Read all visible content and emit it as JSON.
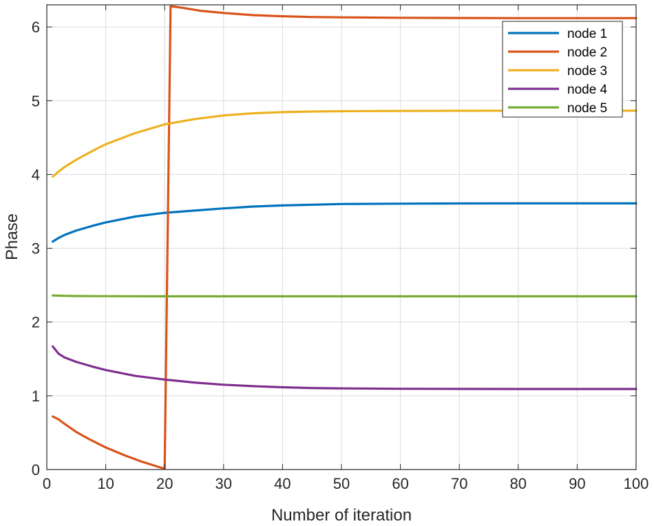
{
  "chart_data": {
    "type": "line",
    "title": "",
    "xlabel": "Number of iteration",
    "ylabel": "Phase",
    "xlim": [
      0,
      100
    ],
    "ylim": [
      0,
      6.3
    ],
    "x_ticks": [
      "0",
      "10",
      "20",
      "30",
      "40",
      "50",
      "60",
      "70",
      "80",
      "90",
      "100"
    ],
    "y_ticks": [
      "0",
      "1",
      "2",
      "3",
      "4",
      "5",
      "6"
    ],
    "grid": true,
    "legend_position": "top-right",
    "series": [
      {
        "name": "node 1",
        "color": "#0072BD",
        "points": [
          [
            1,
            3.09
          ],
          [
            2,
            3.14
          ],
          [
            3,
            3.18
          ],
          [
            5,
            3.24
          ],
          [
            8,
            3.31
          ],
          [
            10,
            3.35
          ],
          [
            15,
            3.43
          ],
          [
            20,
            3.48
          ],
          [
            25,
            3.51
          ],
          [
            30,
            3.54
          ],
          [
            35,
            3.565
          ],
          [
            40,
            3.58
          ],
          [
            45,
            3.59
          ],
          [
            50,
            3.6
          ],
          [
            60,
            3.605
          ],
          [
            70,
            3.607
          ],
          [
            80,
            3.608
          ],
          [
            90,
            3.608
          ],
          [
            100,
            3.608
          ]
        ]
      },
      {
        "name": "node 2",
        "color": "#D95319",
        "points": [
          [
            1,
            0.72
          ],
          [
            2,
            0.68
          ],
          [
            3,
            0.62
          ],
          [
            5,
            0.51
          ],
          [
            7,
            0.42
          ],
          [
            10,
            0.3
          ],
          [
            13,
            0.2
          ],
          [
            16,
            0.11
          ],
          [
            18,
            0.06
          ],
          [
            20,
            0.01
          ],
          [
            21,
            6.28
          ],
          [
            23,
            6.26
          ],
          [
            26,
            6.22
          ],
          [
            30,
            6.19
          ],
          [
            35,
            6.16
          ],
          [
            40,
            6.145
          ],
          [
            45,
            6.135
          ],
          [
            50,
            6.13
          ],
          [
            60,
            6.125
          ],
          [
            70,
            6.122
          ],
          [
            80,
            6.12
          ],
          [
            90,
            6.12
          ],
          [
            100,
            6.12
          ]
        ]
      },
      {
        "name": "node 3",
        "color": "#EDB120",
        "points": [
          [
            1,
            3.97
          ],
          [
            2,
            4.04
          ],
          [
            3,
            4.1
          ],
          [
            5,
            4.2
          ],
          [
            8,
            4.33
          ],
          [
            10,
            4.41
          ],
          [
            15,
            4.56
          ],
          [
            20,
            4.68
          ],
          [
            25,
            4.75
          ],
          [
            30,
            4.8
          ],
          [
            35,
            4.83
          ],
          [
            40,
            4.845
          ],
          [
            45,
            4.853
          ],
          [
            50,
            4.858
          ],
          [
            60,
            4.862
          ],
          [
            70,
            4.864
          ],
          [
            80,
            4.865
          ],
          [
            90,
            4.865
          ],
          [
            100,
            4.865
          ]
        ]
      },
      {
        "name": "node 4",
        "color": "#7E2F8E",
        "points": [
          [
            1,
            1.67
          ],
          [
            2,
            1.57
          ],
          [
            3,
            1.52
          ],
          [
            5,
            1.46
          ],
          [
            8,
            1.39
          ],
          [
            10,
            1.35
          ],
          [
            15,
            1.27
          ],
          [
            20,
            1.22
          ],
          [
            25,
            1.18
          ],
          [
            30,
            1.15
          ],
          [
            35,
            1.13
          ],
          [
            40,
            1.115
          ],
          [
            45,
            1.105
          ],
          [
            50,
            1.1
          ],
          [
            60,
            1.095
          ],
          [
            70,
            1.093
          ],
          [
            80,
            1.092
          ],
          [
            90,
            1.092
          ],
          [
            100,
            1.092
          ]
        ]
      },
      {
        "name": "node 5",
        "color": "#77AC30",
        "points": [
          [
            1,
            2.36
          ],
          [
            3,
            2.355
          ],
          [
            5,
            2.352
          ],
          [
            10,
            2.35
          ],
          [
            20,
            2.348
          ],
          [
            40,
            2.348
          ],
          [
            60,
            2.348
          ],
          [
            80,
            2.348
          ],
          [
            100,
            2.348
          ]
        ]
      }
    ]
  }
}
